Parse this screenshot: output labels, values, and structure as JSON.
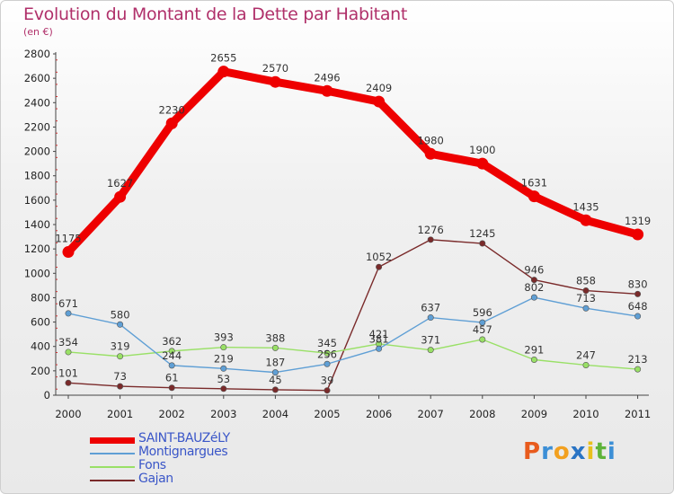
{
  "header": {
    "title": "Evolution du Montant de la Dette par Habitant",
    "subtitle": "(en €)"
  },
  "brand": {
    "name": "Proxiti",
    "colors": [
      "#e85b1d",
      "#3c8fd6",
      "#f2a01f",
      "#2a74c4",
      "#e8c01d",
      "#5fb33a",
      "#3c8fd6"
    ]
  },
  "chart_data": {
    "type": "line",
    "categories": [
      "2000",
      "2001",
      "2002",
      "2003",
      "2004",
      "2005",
      "2006",
      "2007",
      "2008",
      "2009",
      "2010",
      "2011"
    ],
    "ylim": [
      0,
      2800
    ],
    "yticks": [
      0,
      200,
      400,
      600,
      800,
      1000,
      1200,
      1400,
      1600,
      1800,
      2000,
      2200,
      2400,
      2600,
      2800
    ],
    "grid": false,
    "legend_position": "bottom-left",
    "series": [
      {
        "name": "SAINT-BAUZéLY",
        "color": "#ee0000",
        "values": [
          1175,
          1627,
          2230,
          2655,
          2570,
          2496,
          2409,
          1980,
          1900,
          1631,
          1435,
          1319
        ]
      },
      {
        "name": "Montignargues",
        "color": "#5f9fd5",
        "values": [
          671,
          580,
          244,
          219,
          187,
          256,
          381,
          637,
          596,
          802,
          713,
          648
        ]
      },
      {
        "name": "Fons",
        "color": "#99e066",
        "values": [
          354,
          319,
          362,
          393,
          388,
          345,
          421,
          371,
          457,
          291,
          247,
          213
        ]
      },
      {
        "name": "Gajan",
        "color": "#7a2a2a",
        "values": [
          101,
          73,
          61,
          53,
          45,
          39,
          1052,
          1276,
          1245,
          946,
          858,
          830
        ]
      }
    ]
  }
}
